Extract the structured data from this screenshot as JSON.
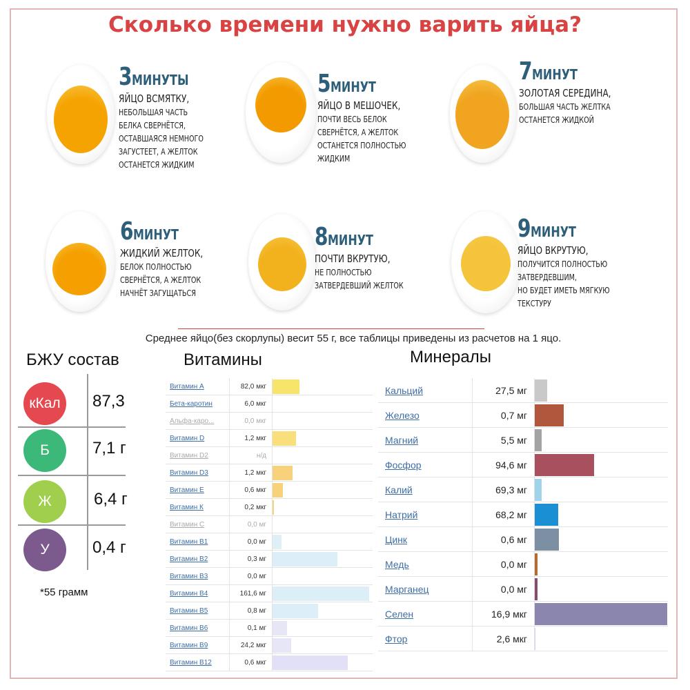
{
  "title": "Сколько времени нужно варить яйца?",
  "eggs": [
    {
      "num": "3",
      "unit": "МИНУТЫ",
      "head": "ЯЙЦО ВСМЯТКУ,",
      "desc": "НЕБОЛЬШАЯ ЧАСТЬ\nБЕЛКА СВЕРНЁТСЯ,\nОСТАВШАЯСЯ НЕМНОГО\nЗАГУСТЕЕТ, А ЖЕЛТОК\nОСТАНЕТСЯ ЖИДКИМ",
      "yolk": "#f5a300"
    },
    {
      "num": "5",
      "unit": "МИНУТ",
      "head": "ЯЙЦО В МЕШОЧЕК,",
      "desc": "ПОЧТИ ВЕСЬ БЕЛОК\nСВЕРНЁТСЯ, А ЖЕЛТОК\nОСТАНЕТСЯ ПОЛНОСТЬЮ\nЖИДКИМ",
      "yolk": "#f39a00"
    },
    {
      "num": "7",
      "unit": "МИНУТ",
      "head": "ЗОЛОТАЯ СЕРЕДИНА,",
      "desc": "БОЛЬШАЯ ЧАСТЬ ЖЕЛТКА\nОСТАНЕТСЯ ЖИДКОЙ",
      "yolk": "#f0a420"
    },
    {
      "num": "6",
      "unit": "МИНУТ",
      "head": "ЖИДКИЙ ЖЕЛТОК,",
      "desc": "БЕЛОК ПОЛНОСТЬЮ\nСВЕРНЁТСЯ, А ЖЕЛТОК\nНАЧНЁТ ЗАГУЩАТЬСЯ",
      "yolk": "#f5a000"
    },
    {
      "num": "8",
      "unit": "МИНУТ",
      "head": "ПОЧТИ ВКРУТУЮ,",
      "desc": "НЕ ПОЛНОСТЬЮ\nЗАТВЕРДЕВШИЙ ЖЕЛТОК",
      "yolk": "#f2b21e"
    },
    {
      "num": "9",
      "unit": "МИНУТ",
      "head": "ЯЙЦО ВКРУТУЮ,",
      "desc": "ПОЛУЧИТСЯ ПОЛНОСТЬЮ\nЗАТВЕРДЕВШИМ,\nНО БУДЕТ ИМЕТЬ МЯГКУЮ\nТЕКСТУРУ",
      "yolk": "#f5c43a"
    }
  ],
  "avg_note": "Среднее яйцо(без скорлупы) весит 55 г, все таблицы приведены из расчетов на 1 яцо.",
  "bzu": {
    "title": "БЖУ состав",
    "rows": [
      {
        "label": "кКал",
        "value": "87,3",
        "color": "#e5484f"
      },
      {
        "label": "Б",
        "value": "7,1 г",
        "color": "#3cb879"
      },
      {
        "label": "Ж",
        "value": "6,4 г",
        "color": "#9fcf4c"
      },
      {
        "label": "У",
        "value": "0,4 г",
        "color": "#7c5a8e"
      }
    ],
    "note": "*55 грамм"
  },
  "vitamins": {
    "title": "Витамины",
    "rows": [
      {
        "name": "Витамин А",
        "value": "82,0 мкг",
        "fill": 0.28,
        "color": "#f7e46a",
        "dim": false
      },
      {
        "name": "Бета-каротин",
        "value": "6,0 мкг",
        "fill": 0,
        "color": "#f7e46a",
        "dim": false
      },
      {
        "name": "Альфа-каро...",
        "value": "0,0 мкг",
        "fill": 0,
        "color": "#f7e46a",
        "dim": true
      },
      {
        "name": "Витамин D",
        "value": "1,2 мкг",
        "fill": 0.24,
        "color": "#f8df7b",
        "dim": false
      },
      {
        "name": "Витамин D2",
        "value": "н/д",
        "fill": 0,
        "color": "#f8df7b",
        "dim": true
      },
      {
        "name": "Витамин D3",
        "value": "1,2 мкг",
        "fill": 0.21,
        "color": "#f8d27a",
        "dim": false
      },
      {
        "name": "Витамин Е",
        "value": "0,6 мкг",
        "fill": 0.11,
        "color": "#f8d27a",
        "dim": false
      },
      {
        "name": "Витамин К",
        "value": "0,2 мкг",
        "fill": 0.015,
        "color": "#f8d27a",
        "dim": false
      },
      {
        "name": "Витамин С",
        "value": "0,0 мг",
        "fill": 0,
        "color": "#f8d27a",
        "dim": true
      },
      {
        "name": "Витамин В1",
        "value": "0,0 мг",
        "fill": 0.09,
        "color": "#dfeff6",
        "dim": false
      },
      {
        "name": "Витамин В2",
        "value": "0,3 мг",
        "fill": 0.67,
        "color": "#dceef7",
        "dim": false
      },
      {
        "name": "Витамин В3",
        "value": "0,0 мг",
        "fill": 0,
        "color": "#dceef7",
        "dim": false
      },
      {
        "name": "Витамин В4",
        "value": "161,6 мг",
        "fill": 1.0,
        "color": "#dceef7",
        "dim": false
      },
      {
        "name": "Витамин В5",
        "value": "0,8 мг",
        "fill": 0.47,
        "color": "#dceef7",
        "dim": false
      },
      {
        "name": "Витамин В6",
        "value": "0,1 мг",
        "fill": 0.15,
        "color": "#e6e6f6",
        "dim": false
      },
      {
        "name": "Витамин В9",
        "value": "24,2 мкг",
        "fill": 0.19,
        "color": "#e6e6f6",
        "dim": false
      },
      {
        "name": "Витамин В12",
        "value": "0,6 мкг",
        "fill": 0.78,
        "color": "#e1e0f6",
        "dim": false
      }
    ]
  },
  "minerals": {
    "title": "Минералы",
    "rows": [
      {
        "name": "Кальций",
        "value": "27,5 мг",
        "fill": 0.095,
        "color": "#c9c9c9"
      },
      {
        "name": "Железо",
        "value": "0,7 мг",
        "fill": 0.22,
        "color": "#b0573e"
      },
      {
        "name": "Магний",
        "value": "5,5 мг",
        "fill": 0.05,
        "color": "#a3a3a3"
      },
      {
        "name": "Фосфор",
        "value": "94,6 мг",
        "fill": 0.45,
        "color": "#a8505e"
      },
      {
        "name": "Калий",
        "value": "69,3 мг",
        "fill": 0.05,
        "color": "#9fd3ea"
      },
      {
        "name": "Натрий",
        "value": "68,2 мг",
        "fill": 0.175,
        "color": "#1a8fd3"
      },
      {
        "name": "Цинк",
        "value": "0,6 мг",
        "fill": 0.18,
        "color": "#7c8fa3"
      },
      {
        "name": "Медь",
        "value": "0,0 мг",
        "fill": 0.02,
        "color": "#b96a2a"
      },
      {
        "name": "Марганец",
        "value": "0,0 мг",
        "fill": 0.02,
        "color": "#8a4c6e"
      },
      {
        "name": "Селен",
        "value": "16,9 мкг",
        "fill": 1.0,
        "color": "#8a86ad"
      },
      {
        "name": "Фтор",
        "value": "2,6 мкг",
        "fill": 0,
        "color": "#cfd6ec"
      }
    ]
  }
}
